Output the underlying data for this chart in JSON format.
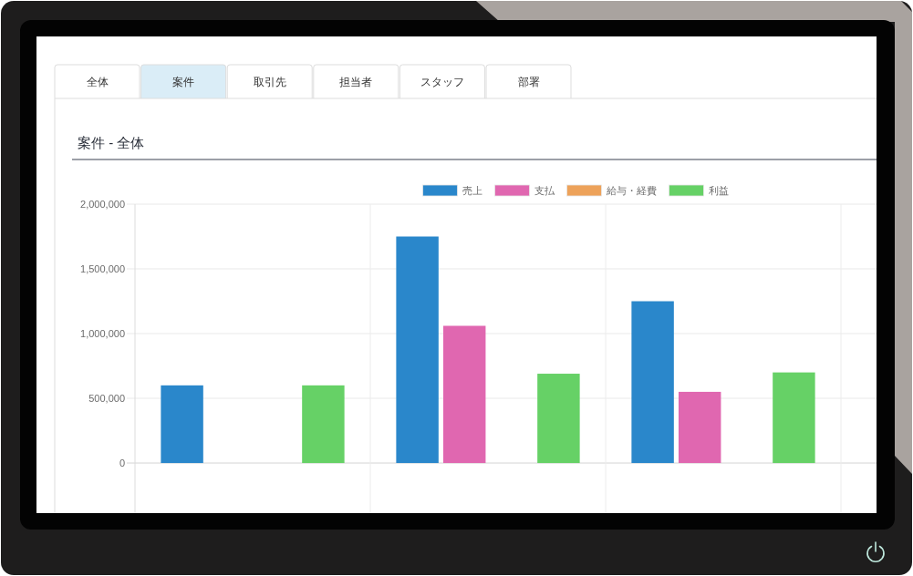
{
  "chart_data": {
    "type": "bar",
    "title": "案件 - 全体",
    "categories": [
      null,
      null,
      null
    ],
    "series": [
      {
        "name": "売上",
        "color": "#2a87cb",
        "values": [
          600000,
          1750000,
          1250000
        ]
      },
      {
        "name": "支払",
        "color": "#e067b0",
        "values": [
          null,
          1060000,
          550000
        ]
      },
      {
        "name": "給与・経費",
        "color": "#eda25a",
        "values": [
          null,
          null,
          null
        ]
      },
      {
        "name": "利益",
        "color": "#66d166",
        "values": [
          600000,
          690000,
          700000
        ]
      }
    ],
    "ylim": [
      -380000,
      2000000
    ],
    "yticks": [
      0,
      {
        "value": 500000,
        "label": "500,000"
      },
      {
        "value": 1000000,
        "label": "1,000,000"
      },
      {
        "value": 1500000,
        "label": "1,500,000"
      },
      {
        "value": 2000000,
        "label": "2,000,000"
      }
    ],
    "grid": true,
    "legend": "top",
    "annotations": [
      "全体",
      "案件",
      "取引先",
      "担当者",
      "スタッフ",
      "部署"
    ]
  }
}
